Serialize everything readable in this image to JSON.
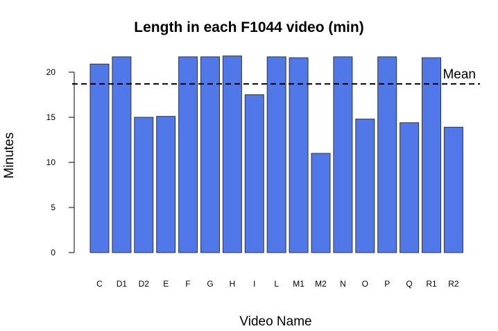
{
  "chart_data": {
    "type": "bar",
    "title": "Length in each F1044 video (min)",
    "xlabel": "Video Name",
    "ylabel": "Minutes",
    "categories": [
      "C",
      "D1",
      "D2",
      "E",
      "F",
      "G",
      "H",
      "I",
      "L",
      "M1",
      "M2",
      "N",
      "O",
      "P",
      "Q",
      "R1",
      "R2"
    ],
    "values": [
      20.9,
      21.7,
      15.0,
      15.1,
      21.7,
      21.7,
      21.8,
      17.5,
      21.7,
      21.6,
      11.0,
      21.7,
      14.8,
      21.7,
      14.4,
      21.6,
      13.9
    ],
    "ylim": [
      0,
      22
    ],
    "yticks": [
      "0",
      "5",
      "10",
      "15",
      "20"
    ],
    "mean": 18.7,
    "mean_label": "Mean",
    "bar_color": "#5078e8",
    "bar_edge_color": "#333333",
    "mean_line_style": "dashed",
    "grid": false,
    "legend": "none"
  }
}
